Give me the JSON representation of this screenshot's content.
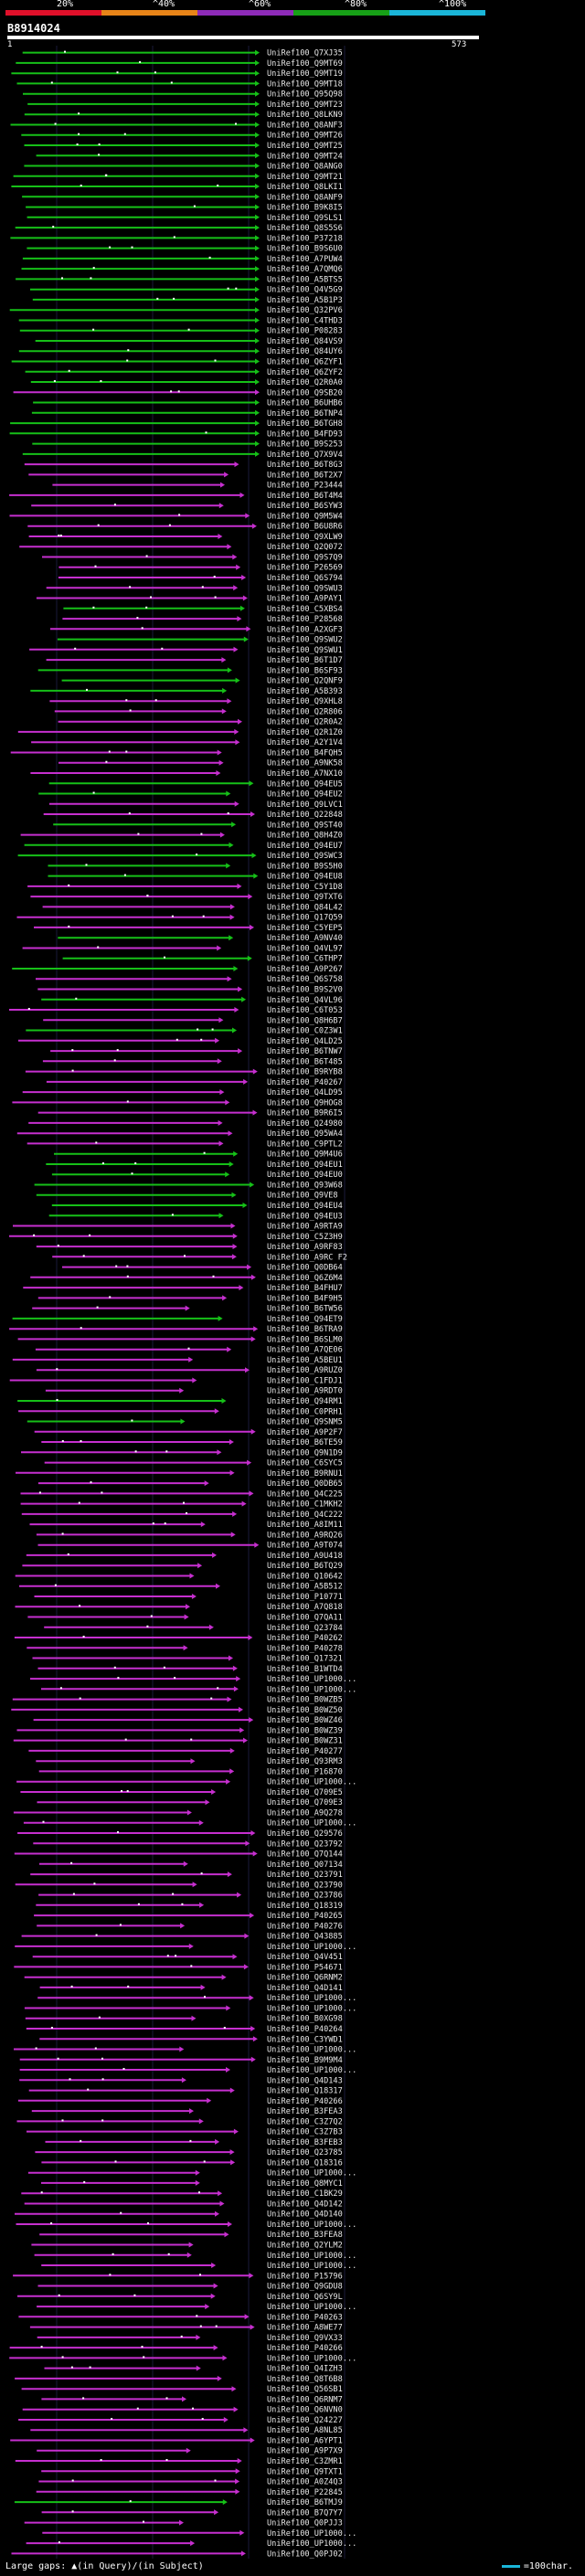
{
  "scale": {
    "labels": [
      "20%",
      "^40%",
      "^60%",
      "^80%",
      "^100%"
    ],
    "colors": [
      "#e0102a",
      "#e88418",
      "#8e2bb8",
      "#17a017",
      "#1ab5d8"
    ]
  },
  "query": {
    "id": "B8914024",
    "start": "1",
    "end": "573"
  },
  "colors": {
    "hit_green": "#16c018",
    "hit_magenta": "#c62fcf",
    "gap": "#ffffff",
    "background": "#000000"
  },
  "hits": [
    {
      "id": "UniRef100_Q7XJ35",
      "c": "g"
    },
    {
      "id": "UniRef100_Q9MT69",
      "c": "g"
    },
    {
      "id": "UniRef100_Q9MT19",
      "c": "g"
    },
    {
      "id": "UniRef100_Q9MT18",
      "c": "g"
    },
    {
      "id": "UniRef100_Q95Q98",
      "c": "g"
    },
    {
      "id": "UniRef100_Q9MT23",
      "c": "g"
    },
    {
      "id": "UniRef100_Q8LKN9",
      "c": "g"
    },
    {
      "id": "UniRef100_Q8ANF3",
      "c": "g"
    },
    {
      "id": "UniRef100_Q9MT26",
      "c": "g"
    },
    {
      "id": "UniRef100_Q9MT25",
      "c": "g"
    },
    {
      "id": "UniRef100_Q9MT24",
      "c": "g"
    },
    {
      "id": "UniRef100_Q8ANG0",
      "c": "g"
    },
    {
      "id": "UniRef100_Q9MT21",
      "c": "g"
    },
    {
      "id": "UniRef100_Q8LKI1",
      "c": "g"
    },
    {
      "id": "UniRef100_Q8ANF9",
      "c": "g"
    },
    {
      "id": "UniRef100_B9K8I5",
      "c": "g"
    },
    {
      "id": "UniRef100_Q9SLS1",
      "c": "g"
    },
    {
      "id": "UniRef100_Q8S5S6",
      "c": "g"
    },
    {
      "id": "UniRef100_P37218",
      "c": "g"
    },
    {
      "id": "UniRef100_B9S6U0",
      "c": "g"
    },
    {
      "id": "UniRef100_A7PUW4",
      "c": "g"
    },
    {
      "id": "UniRef100_A7QMQ6",
      "c": "g"
    },
    {
      "id": "UniRef100_A5BTS5",
      "c": "g"
    },
    {
      "id": "UniRef100_Q4V5G9",
      "c": "g"
    },
    {
      "id": "UniRef100_A5B1P3",
      "c": "g"
    },
    {
      "id": "UniRef100_Q32PV6",
      "c": "g"
    },
    {
      "id": "UniRef100_C4THD3",
      "c": "g"
    },
    {
      "id": "UniRef100_P08283",
      "c": "g"
    },
    {
      "id": "UniRef100_Q84VS9",
      "c": "g"
    },
    {
      "id": "UniRef100_Q84UY6",
      "c": "g"
    },
    {
      "id": "UniRef100_Q6ZYF1",
      "c": "g"
    },
    {
      "id": "UniRef100_Q6ZYF2",
      "c": "g"
    },
    {
      "id": "UniRef100_Q2R0A0",
      "c": "g"
    },
    {
      "id": "UniRef100_Q9SB20",
      "c": "m"
    },
    {
      "id": "UniRef100_B6UHB6",
      "c": "g"
    },
    {
      "id": "UniRef100_B6TNP4",
      "c": "g"
    },
    {
      "id": "UniRef100_B6TGH8",
      "c": "g"
    },
    {
      "id": "UniRef100_B4FD93",
      "c": "g"
    },
    {
      "id": "UniRef100_B9S253",
      "c": "g"
    },
    {
      "id": "UniRef100_Q7X9V4",
      "c": "g"
    },
    {
      "id": "UniRef100_B6T8G3",
      "c": "m"
    },
    {
      "id": "UniRef100_B6T2X7",
      "c": "m"
    },
    {
      "id": "UniRef100_P23444",
      "c": "m"
    },
    {
      "id": "UniRef100_B6T4M4",
      "c": "m"
    },
    {
      "id": "UniRef100_B6SYW3",
      "c": "m"
    },
    {
      "id": "UniRef100_Q9M5W4",
      "c": "m"
    },
    {
      "id": "UniRef100_B6U8R6",
      "c": "m"
    },
    {
      "id": "UniRef100_Q9XLW9",
      "c": "m"
    },
    {
      "id": "UniRef100_Q2Q072",
      "c": "m"
    },
    {
      "id": "UniRef100_Q9S7Q9",
      "c": "m"
    },
    {
      "id": "UniRef100_P26569",
      "c": "m"
    },
    {
      "id": "UniRef100_Q6S794",
      "c": "m"
    },
    {
      "id": "UniRef100_Q9SWU3",
      "c": "m"
    },
    {
      "id": "UniRef100_A9PAY1",
      "c": "m"
    },
    {
      "id": "UniRef100_C5XBS4",
      "c": "g"
    },
    {
      "id": "UniRef100_P28568",
      "c": "m"
    },
    {
      "id": "UniRef100_A2XGF3",
      "c": "m"
    },
    {
      "id": "UniRef100_Q9SWU2",
      "c": "g"
    },
    {
      "id": "UniRef100_Q9SWU1",
      "c": "m"
    },
    {
      "id": "UniRef100_B6T1D7",
      "c": "m"
    },
    {
      "id": "UniRef100_B6SF93",
      "c": "g"
    },
    {
      "id": "UniRef100_Q2QNF9",
      "c": "g"
    },
    {
      "id": "UniRef100_A5B393",
      "c": "g"
    },
    {
      "id": "UniRef100_Q9XHL8",
      "c": "m"
    },
    {
      "id": "UniRef100_Q2R806",
      "c": "m"
    },
    {
      "id": "UniRef100_Q2R0A2",
      "c": "m"
    },
    {
      "id": "UniRef100_Q2R1Z0",
      "c": "m"
    },
    {
      "id": "UniRef100_A2Y1V4",
      "c": "m"
    },
    {
      "id": "UniRef100_B4FQH5",
      "c": "m"
    },
    {
      "id": "UniRef100_A9NK58",
      "c": "m"
    },
    {
      "id": "UniRef100_A7NX10",
      "c": "m"
    },
    {
      "id": "UniRef100_Q94EU5",
      "c": "g"
    },
    {
      "id": "UniRef100_Q94EU2",
      "c": "g"
    },
    {
      "id": "UniRef100_Q9LVC1",
      "c": "m"
    },
    {
      "id": "UniRef100_Q22848",
      "c": "m"
    },
    {
      "id": "UniRef100_Q9ST40",
      "c": "g"
    },
    {
      "id": "UniRef100_Q8H4Z0",
      "c": "m"
    },
    {
      "id": "UniRef100_Q94EU7",
      "c": "g"
    },
    {
      "id": "UniRef100_Q9SWC3",
      "c": "g"
    },
    {
      "id": "UniRef100_B9S5H0",
      "c": "g"
    },
    {
      "id": "UniRef100_Q94EU8",
      "c": "g"
    },
    {
      "id": "UniRef100_C5Y1D8",
      "c": "m"
    },
    {
      "id": "UniRef100_Q9TXT6",
      "c": "m"
    },
    {
      "id": "UniRef100_Q84L42",
      "c": "m"
    },
    {
      "id": "UniRef100_Q17Q59",
      "c": "m"
    },
    {
      "id": "UniRef100_C5YEP5",
      "c": "m"
    },
    {
      "id": "UniRef100_A9NV40",
      "c": "g"
    },
    {
      "id": "UniRef100_Q4VL97",
      "c": "m"
    },
    {
      "id": "UniRef100_C6THP7",
      "c": "g"
    },
    {
      "id": "UniRef100_A9P267",
      "c": "g"
    },
    {
      "id": "UniRef100_Q6S758",
      "c": "m"
    },
    {
      "id": "UniRef100_B9S2V0",
      "c": "m"
    },
    {
      "id": "UniRef100_Q4VL96",
      "c": "g"
    },
    {
      "id": "UniRef100_C6T053",
      "c": "m"
    },
    {
      "id": "UniRef100_Q8H6B7",
      "c": "m"
    },
    {
      "id": "UniRef100_C0Z3W1",
      "c": "g"
    },
    {
      "id": "UniRef100_Q4LD25",
      "c": "m"
    },
    {
      "id": "UniRef100_B6TNW7",
      "c": "m"
    },
    {
      "id": "UniRef100_B6T485",
      "c": "m"
    },
    {
      "id": "UniRef100_B9RYB8",
      "c": "m"
    },
    {
      "id": "UniRef100_P40267",
      "c": "m"
    },
    {
      "id": "UniRef100_Q4LD95",
      "c": "m"
    },
    {
      "id": "UniRef100_Q9HOG8",
      "c": "m"
    },
    {
      "id": "UniRef100_B9R6I5",
      "c": "m"
    },
    {
      "id": "UniRef100_Q24980",
      "c": "m"
    },
    {
      "id": "UniRef100_Q95WA4",
      "c": "m"
    },
    {
      "id": "UniRef100_C9PTL2",
      "c": "m"
    },
    {
      "id": "UniRef100_Q9M4U6",
      "c": "g"
    },
    {
      "id": "UniRef100_Q94EU1",
      "c": "g"
    },
    {
      "id": "UniRef100_Q94EU0",
      "c": "g"
    },
    {
      "id": "UniRef100_Q93W68",
      "c": "g"
    },
    {
      "id": "UniRef100_Q9VE8",
      "c": "g"
    },
    {
      "id": "UniRef100_Q94EU4",
      "c": "g"
    },
    {
      "id": "UniRef100_Q94EU3",
      "c": "g"
    },
    {
      "id": "UniRef100_A9RTA9",
      "c": "m"
    },
    {
      "id": "UniRef100_C5Z3H9",
      "c": "m"
    },
    {
      "id": "UniRef100_A9RF83",
      "c": "m"
    },
    {
      "id": "UniRef100_A9RC F2",
      "c": "m"
    },
    {
      "id": "UniRef100_Q0DB64",
      "c": "m"
    },
    {
      "id": "UniRef100_Q6Z6M4",
      "c": "m"
    },
    {
      "id": "UniRef100_B4FHU7",
      "c": "m"
    },
    {
      "id": "UniRef100_B4F9H5",
      "c": "m"
    },
    {
      "id": "UniRef100_B6TW56",
      "c": "m"
    },
    {
      "id": "UniRef100_Q94ET9",
      "c": "g"
    },
    {
      "id": "UniRef100_B6TRA9",
      "c": "m"
    },
    {
      "id": "UniRef100_B6SLM0",
      "c": "m"
    },
    {
      "id": "UniRef100_A7QE06",
      "c": "m"
    },
    {
      "id": "UniRef100_A5BEU1",
      "c": "m"
    },
    {
      "id": "UniRef100_A9RUZ0",
      "c": "m"
    },
    {
      "id": "UniRef100_C1FDJ1",
      "c": "m"
    },
    {
      "id": "UniRef100_A9RDT0",
      "c": "m"
    },
    {
      "id": "UniRef100_Q94RM1",
      "c": "g"
    },
    {
      "id": "UniRef100_C0PRH1",
      "c": "m"
    },
    {
      "id": "UniRef100_Q9SNM5",
      "c": "g"
    },
    {
      "id": "UniRef100_A9P2F7",
      "c": "m"
    },
    {
      "id": "UniRef100_B6TE59",
      "c": "m"
    },
    {
      "id": "UniRef100_Q9N1D9",
      "c": "m"
    },
    {
      "id": "UniRef100_C6SYC5",
      "c": "m"
    },
    {
      "id": "UniRef100_B9RNU1",
      "c": "m"
    },
    {
      "id": "UniRef100_Q0DB65",
      "c": "m"
    },
    {
      "id": "UniRef100_Q4C225",
      "c": "m"
    },
    {
      "id": "UniRef100_C1MKH2",
      "c": "m"
    },
    {
      "id": "UniRef100_Q4C222",
      "c": "m"
    },
    {
      "id": "UniRef100_A8IM11",
      "c": "m"
    },
    {
      "id": "UniRef100_A9RQ26",
      "c": "m"
    },
    {
      "id": "UniRef100_A9T074",
      "c": "m"
    },
    {
      "id": "UniRef100_A9U418",
      "c": "m"
    },
    {
      "id": "UniRef100_B6TQ29",
      "c": "m"
    },
    {
      "id": "UniRef100_Q10642",
      "c": "m"
    },
    {
      "id": "UniRef100_A5B512",
      "c": "m"
    },
    {
      "id": "UniRef100_P10771",
      "c": "m"
    },
    {
      "id": "UniRef100_A7Q818",
      "c": "m"
    },
    {
      "id": "UniRef100_Q7QA11",
      "c": "m"
    },
    {
      "id": "UniRef100_Q23784",
      "c": "m"
    },
    {
      "id": "UniRef100_P40262",
      "c": "m"
    },
    {
      "id": "UniRef100_P40278",
      "c": "m"
    },
    {
      "id": "UniRef100_Q17321",
      "c": "m"
    },
    {
      "id": "UniRef100_B1WTD4",
      "c": "m"
    },
    {
      "id": "UniRef100_UP1000...",
      "c": "m"
    },
    {
      "id": "UniRef100_UP1000...",
      "c": "m"
    },
    {
      "id": "UniRef100_B0WZB5",
      "c": "m"
    },
    {
      "id": "UniRef100_B0WZ50",
      "c": "m"
    },
    {
      "id": "UniRef100_B0WZ46",
      "c": "m"
    },
    {
      "id": "UniRef100_B0WZ39",
      "c": "m"
    },
    {
      "id": "UniRef100_B0WZ31",
      "c": "m"
    },
    {
      "id": "UniRef100_P40277",
      "c": "m"
    },
    {
      "id": "UniRef100_Q93RM3",
      "c": "m"
    },
    {
      "id": "UniRef100_P16870",
      "c": "m"
    },
    {
      "id": "UniRef100_UP1000...",
      "c": "m"
    },
    {
      "id": "UniRef100_Q709E5",
      "c": "m"
    },
    {
      "id": "UniRef100_Q709E3",
      "c": "m"
    },
    {
      "id": "UniRef100_A9Q278",
      "c": "m"
    },
    {
      "id": "UniRef100_UP1000...",
      "c": "m"
    },
    {
      "id": "UniRef100_Q29576",
      "c": "m"
    },
    {
      "id": "UniRef100_Q23792",
      "c": "m"
    },
    {
      "id": "UniRef100_Q7Q144",
      "c": "m"
    },
    {
      "id": "UniRef100_Q07134",
      "c": "m"
    },
    {
      "id": "UniRef100_Q23791",
      "c": "m"
    },
    {
      "id": "UniRef100_Q23790",
      "c": "m"
    },
    {
      "id": "UniRef100_Q23786",
      "c": "m"
    },
    {
      "id": "UniRef100_Q18319",
      "c": "m"
    },
    {
      "id": "UniRef100_P40265",
      "c": "m"
    },
    {
      "id": "UniRef100_P40276",
      "c": "m"
    },
    {
      "id": "UniRef100_Q43885",
      "c": "m"
    },
    {
      "id": "UniRef100_UP1000...",
      "c": "m"
    },
    {
      "id": "UniRef100_Q4V451",
      "c": "m"
    },
    {
      "id": "UniRef100_P54671",
      "c": "m"
    },
    {
      "id": "UniRef100_Q6RNM2",
      "c": "m"
    },
    {
      "id": "UniRef100_Q4D141",
      "c": "m"
    },
    {
      "id": "UniRef100_UP1000...",
      "c": "m"
    },
    {
      "id": "UniRef100_UP1000...",
      "c": "m"
    },
    {
      "id": "UniRef100_B0XG98",
      "c": "m"
    },
    {
      "id": "UniRef100_P40264",
      "c": "m"
    },
    {
      "id": "UniRef100_C3YWD1",
      "c": "m"
    },
    {
      "id": "UniRef100_UP1000...",
      "c": "m"
    },
    {
      "id": "UniRef100_B9M9M4",
      "c": "m"
    },
    {
      "id": "UniRef100_UP1000...",
      "c": "m"
    },
    {
      "id": "UniRef100_Q4D143",
      "c": "m"
    },
    {
      "id": "UniRef100_Q18317",
      "c": "m"
    },
    {
      "id": "UniRef100_P40266",
      "c": "m"
    },
    {
      "id": "UniRef100_B3FEA3",
      "c": "m"
    },
    {
      "id": "UniRef100_C3Z7Q2",
      "c": "m"
    },
    {
      "id": "UniRef100_C3Z7B3",
      "c": "m"
    },
    {
      "id": "UniRef100_B3FEB3",
      "c": "m"
    },
    {
      "id": "UniRef100_Q23785",
      "c": "m"
    },
    {
      "id": "UniRef100_Q18316",
      "c": "m"
    },
    {
      "id": "UniRef100_UP1000...",
      "c": "m"
    },
    {
      "id": "UniRef100_Q8MYC1",
      "c": "m"
    },
    {
      "id": "UniRef100_C1BK29",
      "c": "m"
    },
    {
      "id": "UniRef100_Q4D142",
      "c": "m"
    },
    {
      "id": "UniRef100_Q4D140",
      "c": "m"
    },
    {
      "id": "UniRef100_UP1000...",
      "c": "m"
    },
    {
      "id": "UniRef100_B3FEA8",
      "c": "m"
    },
    {
      "id": "UniRef100_Q2YLM2",
      "c": "m"
    },
    {
      "id": "UniRef100_UP1000...",
      "c": "m"
    },
    {
      "id": "UniRef100_UP1000...",
      "c": "m"
    },
    {
      "id": "UniRef100_P15796",
      "c": "m"
    },
    {
      "id": "UniRef100_Q9GDU8",
      "c": "m"
    },
    {
      "id": "UniRef100_Q6SY9L",
      "c": "m"
    },
    {
      "id": "UniRef100_UP1000...",
      "c": "m"
    },
    {
      "id": "UniRef100_P40263",
      "c": "m"
    },
    {
      "id": "UniRef100_A8WE77",
      "c": "m"
    },
    {
      "id": "UniRef100_Q9VX33",
      "c": "m"
    },
    {
      "id": "UniRef100_P40266",
      "c": "m"
    },
    {
      "id": "UniRef100_UP1000...",
      "c": "m"
    },
    {
      "id": "UniRef100_Q4IZH3",
      "c": "m"
    },
    {
      "id": "UniRef100_Q8T6B8",
      "c": "m"
    },
    {
      "id": "UniRef100_Q56SB1",
      "c": "m"
    },
    {
      "id": "UniRef100_Q6RNM7",
      "c": "m"
    },
    {
      "id": "UniRef100_Q6NVN0",
      "c": "m"
    },
    {
      "id": "UniRef100_Q24227",
      "c": "m"
    },
    {
      "id": "UniRef100_A8NL85",
      "c": "m"
    },
    {
      "id": "UniRef100_A6YPT1",
      "c": "m"
    },
    {
      "id": "UniRef100_A9P7X9",
      "c": "m"
    },
    {
      "id": "UniRef100_C3ZMR1",
      "c": "m"
    },
    {
      "id": "UniRef100_Q9TXT1",
      "c": "m"
    },
    {
      "id": "UniRef100_A0Z4Q3",
      "c": "m"
    },
    {
      "id": "UniRef100_P22845",
      "c": "m"
    },
    {
      "id": "UniRef100_B6TMJ9",
      "c": "g"
    },
    {
      "id": "UniRef100_B7Q7Y7",
      "c": "m"
    },
    {
      "id": "UniRef100_Q0PJJ3",
      "c": "m"
    },
    {
      "id": "UniRef100_UP1000...",
      "c": "m"
    },
    {
      "id": "UniRef100_UP1000...",
      "c": "m"
    },
    {
      "id": "UniRef100_Q0PJ02",
      "c": "m"
    }
  ],
  "footer": {
    "gaps_prefix": "Large gaps:",
    "gaps_query": "(in Query)",
    "gaps_separator": "/",
    "gaps_subject": "(in Subject)",
    "legend_text": "=100char."
  }
}
